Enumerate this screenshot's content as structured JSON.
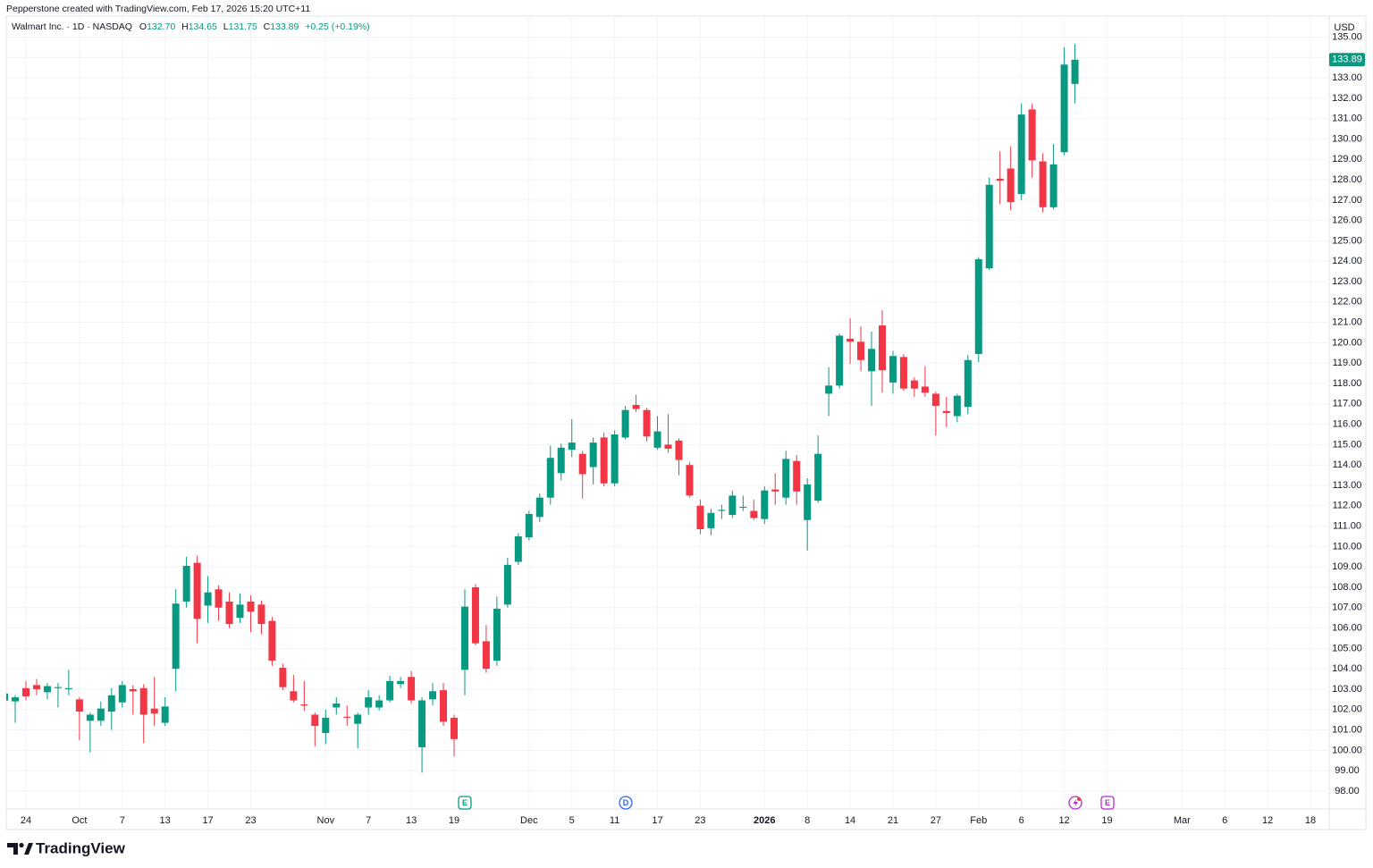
{
  "header": {
    "credit": "Pepperstone created with TradingView.com, Feb 17, 2026 15:20 UTC+11"
  },
  "legend": {
    "symbol": "Walmart Inc. · 1D · NASDAQ",
    "open_key": "O",
    "open": "132.70",
    "high_key": "H",
    "high": "134.65",
    "low_key": "L",
    "low": "131.75",
    "close_key": "C",
    "close": "133.89",
    "change": "+0.25 (+0.19%)"
  },
  "events": [
    {
      "label": "E"
    },
    {
      "label": "D"
    },
    {
      "label": "E"
    }
  ],
  "footer": {
    "brand": "TradingView"
  },
  "chart_data": {
    "type": "candlestick",
    "currency": "USD",
    "up_color": "#089981",
    "down_color": "#f23645",
    "grid": true,
    "last_label": "133.89",
    "ylim": [
      97.12,
      136.03
    ],
    "yticks": [
      {
        "value": 98,
        "label": "98.00"
      },
      {
        "value": 99,
        "label": "99.00"
      },
      {
        "value": 100,
        "label": "100.00"
      },
      {
        "value": 101,
        "label": "101.00"
      },
      {
        "value": 102,
        "label": "102.00"
      },
      {
        "value": 103,
        "label": "103.00"
      },
      {
        "value": 104,
        "label": "104.00"
      },
      {
        "value": 105,
        "label": "105.00"
      },
      {
        "value": 106,
        "label": "106.00"
      },
      {
        "value": 107,
        "label": "107.00"
      },
      {
        "value": 108,
        "label": "108.00"
      },
      {
        "value": 109,
        "label": "109.00"
      },
      {
        "value": 110,
        "label": "110.00"
      },
      {
        "value": 111,
        "label": "111.00"
      },
      {
        "value": 112,
        "label": "112.00"
      },
      {
        "value": 113,
        "label": "113.00"
      },
      {
        "value": 114,
        "label": "114.00"
      },
      {
        "value": 115,
        "label": "115.00"
      },
      {
        "value": 116,
        "label": "116.00"
      },
      {
        "value": 117,
        "label": "117.00"
      },
      {
        "value": 118,
        "label": "118.00"
      },
      {
        "value": 119,
        "label": "119.00"
      },
      {
        "value": 120,
        "label": "120.00"
      },
      {
        "value": 121,
        "label": "121.00"
      },
      {
        "value": 122,
        "label": "122.00"
      },
      {
        "value": 123,
        "label": "123.00"
      },
      {
        "value": 124,
        "label": "124.00"
      },
      {
        "value": 125,
        "label": "125.00"
      },
      {
        "value": 126,
        "label": "126.00"
      },
      {
        "value": 127,
        "label": "127.00"
      },
      {
        "value": 128,
        "label": "128.00"
      },
      {
        "value": 129,
        "label": "129.00"
      },
      {
        "value": 130,
        "label": "130.00"
      },
      {
        "value": 131,
        "label": "131.00"
      },
      {
        "value": 132,
        "label": "132.00"
      },
      {
        "value": 133,
        "label": "133.00"
      },
      {
        "value": 134,
        "label": "134.00"
      },
      {
        "value": 135,
        "label": "135.00"
      }
    ],
    "categories": [
      null,
      null,
      "24",
      null,
      null,
      null,
      null,
      "Oct",
      null,
      null,
      null,
      "7",
      null,
      null,
      null,
      "13",
      null,
      null,
      null,
      "17",
      null,
      null,
      null,
      "23",
      null,
      null,
      null,
      null,
      null,
      null,
      "Nov",
      null,
      null,
      null,
      "7",
      null,
      null,
      null,
      "13",
      null,
      null,
      null,
      "19",
      null,
      null,
      null,
      null,
      null,
      null,
      "Dec",
      null,
      null,
      null,
      "5",
      null,
      null,
      null,
      "11",
      null,
      null,
      null,
      "17",
      null,
      null,
      null,
      "23",
      null,
      null,
      null,
      null,
      null,
      "2026",
      null,
      null,
      null,
      "8",
      null,
      null,
      null,
      "14",
      null,
      null,
      null,
      "21",
      null,
      null,
      null,
      "27",
      null,
      null,
      null,
      "Feb",
      null,
      null,
      null,
      "6",
      null,
      null,
      null,
      "12",
      null,
      null,
      null,
      "19",
      null,
      null,
      null,
      null,
      null,
      null,
      "Mar",
      null,
      null,
      null,
      "6",
      null,
      null,
      null,
      "12",
      null,
      null,
      null,
      "18",
      null
    ],
    "open": [
      102.44,
      102.4,
      103.05,
      103.2,
      102.85,
      103.05,
      103.0,
      102.5,
      101.45,
      101.45,
      101.9,
      102.35,
      103.0,
      103.05,
      102.05,
      101.35,
      104.0,
      107.3,
      109.2,
      107.1,
      107.9,
      107.3,
      106.5,
      107.3,
      107.15,
      106.35,
      104.05,
      102.9,
      102.25,
      101.75,
      100.85,
      102.1,
      101.65,
      101.3,
      102.1,
      102.1,
      102.45,
      103.25,
      103.6,
      100.15,
      102.5,
      102.95,
      101.6,
      103.95,
      108.0,
      105.35,
      104.4,
      107.15,
      109.25,
      110.45,
      111.45,
      112.4,
      113.6,
      114.75,
      114.55,
      113.9,
      115.35,
      113.1,
      115.35,
      116.95,
      116.7,
      114.85,
      115.0,
      115.2,
      114.0,
      112.0,
      110.9,
      111.75,
      111.55,
      111.9,
      111.75,
      111.35,
      112.8,
      112.4,
      114.2,
      111.3,
      112.25,
      117.5,
      117.9,
      120.2,
      120.05,
      118.6,
      120.85,
      118.05,
      119.3,
      118.15,
      117.85,
      117.5,
      116.65,
      116.4,
      116.85,
      119.45,
      123.65,
      128.05,
      128.55,
      127.3,
      131.45,
      128.9,
      126.65,
      129.35,
      132.7,
      null,
      null,
      null,
      null,
      null,
      null,
      null,
      null,
      null,
      null,
      null,
      null,
      null,
      null,
      null,
      null,
      null,
      null,
      null,
      null,
      null,
      null,
      null
    ],
    "high": [
      103.05,
      102.7,
      103.4,
      103.5,
      103.3,
      103.3,
      103.95,
      102.6,
      101.85,
      102.4,
      103.05,
      103.4,
      103.2,
      103.25,
      103.6,
      102.6,
      107.9,
      109.5,
      109.55,
      108.55,
      108.1,
      107.75,
      107.7,
      107.6,
      107.35,
      106.55,
      104.25,
      103.7,
      103.4,
      101.85,
      102.0,
      102.6,
      102.2,
      101.85,
      102.95,
      102.7,
      103.65,
      103.6,
      103.9,
      102.6,
      103.3,
      103.3,
      101.75,
      107.9,
      108.15,
      106.15,
      107.55,
      109.45,
      110.65,
      111.75,
      112.6,
      114.95,
      115.05,
      116.25,
      114.7,
      115.35,
      115.6,
      115.7,
      116.9,
      117.45,
      116.8,
      116.4,
      116.5,
      115.3,
      114.15,
      112.3,
      111.85,
      112.05,
      112.75,
      112.5,
      112.3,
      112.95,
      113.6,
      114.7,
      114.5,
      113.35,
      115.45,
      118.8,
      120.45,
      121.2,
      120.8,
      120.55,
      121.6,
      119.6,
      119.45,
      118.3,
      118.85,
      117.6,
      117.35,
      117.5,
      119.4,
      124.2,
      128.1,
      129.4,
      129.65,
      131.75,
      131.75,
      129.3,
      129.75,
      134.5,
      134.65,
      null,
      null,
      null,
      null,
      null,
      null,
      null,
      null,
      null,
      null,
      null,
      null,
      null,
      null,
      null,
      null,
      null,
      null,
      null,
      null,
      null,
      null,
      null
    ],
    "low": [
      102.35,
      101.35,
      102.45,
      102.7,
      102.5,
      102.1,
      102.7,
      100.5,
      99.9,
      101.2,
      101.0,
      102.1,
      101.75,
      100.35,
      101.2,
      101.2,
      102.9,
      107.0,
      105.25,
      106.25,
      106.35,
      106.0,
      106.25,
      105.8,
      105.7,
      104.15,
      102.95,
      102.35,
      101.95,
      100.2,
      100.3,
      101.75,
      101.2,
      100.1,
      101.75,
      101.95,
      102.35,
      103.05,
      102.3,
      98.9,
      102.2,
      101.2,
      99.7,
      102.7,
      105.15,
      103.8,
      104.15,
      107.0,
      109.1,
      110.3,
      111.2,
      112.05,
      113.25,
      114.4,
      112.35,
      113.05,
      112.95,
      112.95,
      115.25,
      116.6,
      115.15,
      114.75,
      114.6,
      113.5,
      112.4,
      110.6,
      110.55,
      111.35,
      111.4,
      111.75,
      111.3,
      111.1,
      112.05,
      112.05,
      112.05,
      109.8,
      112.15,
      116.4,
      117.75,
      118.95,
      118.6,
      116.9,
      117.55,
      117.5,
      117.65,
      117.35,
      117.35,
      115.45,
      115.85,
      116.1,
      116.5,
      119.05,
      123.55,
      126.8,
      126.5,
      127.0,
      128.1,
      126.4,
      126.55,
      129.2,
      131.75,
      null,
      null,
      null,
      null,
      null,
      null,
      null,
      null,
      null,
      null,
      null,
      null,
      null,
      null,
      null,
      null,
      null,
      null,
      null,
      null,
      null,
      null,
      null
    ],
    "close": [
      102.79,
      102.6,
      102.65,
      103.0,
      103.15,
      103.1,
      103.05,
      101.9,
      101.75,
      102.05,
      102.7,
      103.2,
      102.9,
      101.75,
      101.8,
      102.15,
      107.2,
      109.05,
      106.45,
      107.75,
      107.0,
      106.2,
      107.15,
      106.8,
      106.2,
      104.4,
      103.1,
      102.45,
      102.2,
      101.2,
      101.6,
      102.3,
      101.6,
      101.75,
      102.6,
      102.45,
      103.4,
      103.4,
      102.45,
      102.45,
      102.9,
      101.4,
      100.55,
      107.05,
      105.25,
      104.0,
      106.95,
      109.1,
      110.5,
      111.6,
      112.4,
      114.35,
      114.85,
      115.1,
      113.55,
      115.1,
      113.1,
      115.5,
      116.7,
      116.75,
      115.4,
      115.65,
      114.8,
      114.25,
      112.5,
      110.85,
      111.65,
      111.8,
      112.5,
      111.95,
      111.4,
      112.75,
      112.7,
      114.3,
      112.7,
      113.05,
      114.55,
      117.9,
      120.35,
      120.05,
      119.15,
      119.7,
      118.65,
      119.35,
      117.75,
      117.75,
      117.55,
      116.9,
      116.55,
      117.4,
      119.15,
      124.1,
      127.75,
      127.95,
      126.9,
      131.2,
      128.95,
      126.65,
      128.75,
      133.65,
      133.89,
      null,
      null,
      null,
      null,
      null,
      null,
      null,
      null,
      null,
      null,
      null,
      null,
      null,
      null,
      null,
      null,
      null,
      null,
      null,
      null,
      null,
      null,
      null
    ]
  }
}
